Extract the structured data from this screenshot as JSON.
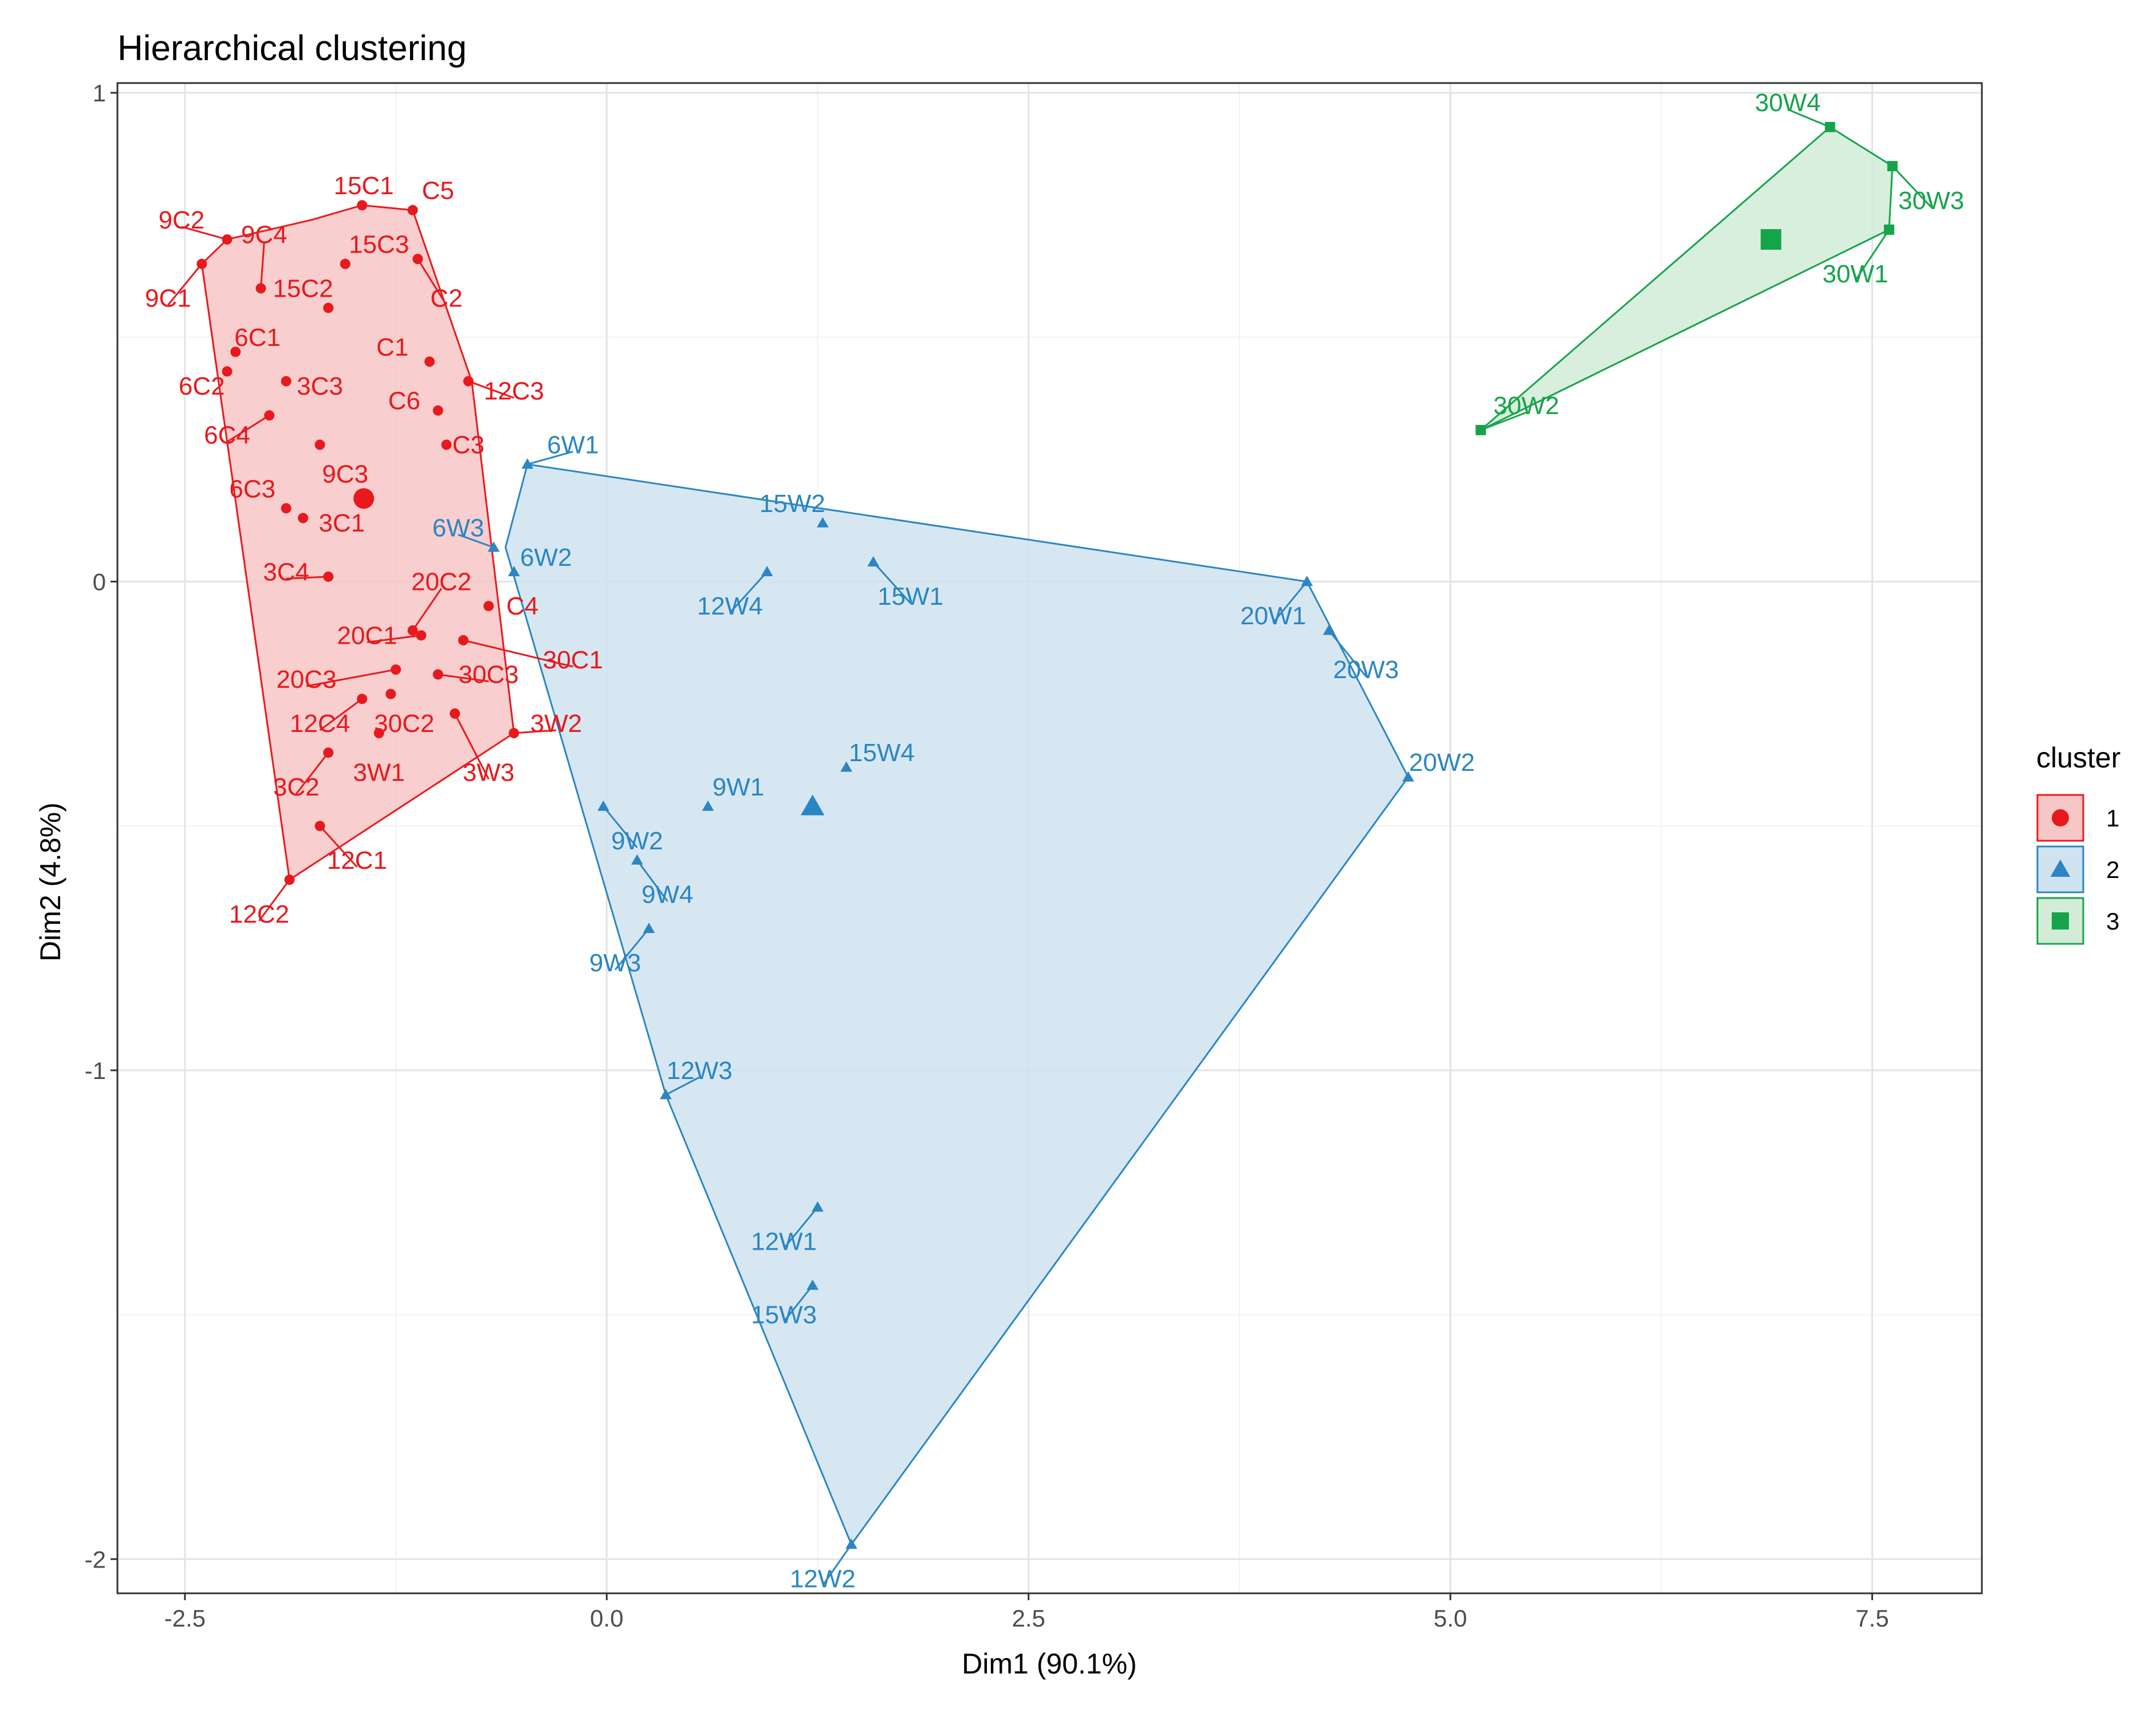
{
  "chart_data": {
    "type": "scatter",
    "title": "Hierarchical clustering",
    "xlabel": "Dim1 (90.1%)",
    "ylabel": "Dim2 (4.8%)",
    "xlim": [
      -2.9,
      8.15
    ],
    "ylim": [
      -2.07,
      1.02
    ],
    "x_ticks": [
      -2.5,
      0.0,
      2.5,
      5.0,
      7.5
    ],
    "x_tick_labels": [
      "-2.5",
      "0.0",
      "2.5",
      "5.0",
      "7.5"
    ],
    "y_ticks": [
      1,
      0,
      -1,
      -2
    ],
    "y_tick_labels": [
      "1",
      "0",
      "-1",
      "-2"
    ],
    "grid": true,
    "legend": {
      "title": "cluster",
      "position": "right"
    },
    "clusters": [
      {
        "name": "1",
        "color": "#e8191c",
        "fill": "#f7c6c7",
        "shape": "circle",
        "centroid": [
          -1.44,
          0.17
        ],
        "hull": [
          [
            -2.4,
            0.65
          ],
          [
            -2.25,
            0.7
          ],
          [
            -1.75,
            0.74
          ],
          [
            -1.45,
            0.77
          ],
          [
            -1.15,
            0.76
          ],
          [
            -0.8,
            0.41
          ],
          [
            -0.55,
            -0.31
          ],
          [
            -1.88,
            -0.61
          ]
        ],
        "points": [
          {
            "label": "9C1",
            "x": -2.4,
            "y": 0.65,
            "lx": -2.6,
            "ly": 0.58
          },
          {
            "label": "9C2",
            "x": -2.25,
            "y": 0.7,
            "lx": -2.52,
            "ly": 0.74
          },
          {
            "label": "9C4",
            "x": -2.05,
            "y": 0.6,
            "lx": -2.03,
            "ly": 0.71
          },
          {
            "label": "15C1",
            "x": -1.45,
            "y": 0.77,
            "lx": -1.44,
            "ly": 0.81
          },
          {
            "label": "C5",
            "x": -1.15,
            "y": 0.76,
            "lx": -1.0,
            "ly": 0.8
          },
          {
            "label": "15C3",
            "x": -1.55,
            "y": 0.65,
            "lx": -1.35,
            "ly": 0.69
          },
          {
            "label": "15C2",
            "x": -1.65,
            "y": 0.56,
            "lx": -1.8,
            "ly": 0.6
          },
          {
            "label": "C2",
            "x": -1.12,
            "y": 0.66,
            "lx": -0.95,
            "ly": 0.58
          },
          {
            "label": "6C1",
            "x": -2.2,
            "y": 0.47,
            "lx": -2.07,
            "ly": 0.5
          },
          {
            "label": "C1",
            "x": -1.05,
            "y": 0.45,
            "lx": -1.27,
            "ly": 0.48
          },
          {
            "label": "12C3",
            "x": -0.82,
            "y": 0.41,
            "lx": -0.55,
            "ly": 0.39
          },
          {
            "label": "6C2",
            "x": -2.25,
            "y": 0.43,
            "lx": -2.4,
            "ly": 0.4
          },
          {
            "label": "3C3",
            "x": -1.9,
            "y": 0.41,
            "lx": -1.7,
            "ly": 0.4
          },
          {
            "label": "C6",
            "x": -1.0,
            "y": 0.35,
            "lx": -1.2,
            "ly": 0.37
          },
          {
            "label": "6C4",
            "x": -2.0,
            "y": 0.34,
            "lx": -2.25,
            "ly": 0.3
          },
          {
            "label": "C3",
            "x": -0.95,
            "y": 0.28,
            "lx": -0.82,
            "ly": 0.28
          },
          {
            "label": "9C3",
            "x": -1.7,
            "y": 0.28,
            "lx": -1.55,
            "ly": 0.22
          },
          {
            "label": "6C3",
            "x": -1.9,
            "y": 0.15,
            "lx": -2.1,
            "ly": 0.19
          },
          {
            "label": "3C1",
            "x": -1.8,
            "y": 0.13,
            "lx": -1.57,
            "ly": 0.12
          },
          {
            "label": "3C4",
            "x": -1.65,
            "y": 0.01,
            "lx": -1.9,
            "ly": 0.02
          },
          {
            "label": "20C2",
            "x": -1.15,
            "y": -0.1,
            "lx": -0.98,
            "ly": 0.0
          },
          {
            "label": "C4",
            "x": -0.7,
            "y": -0.05,
            "lx": -0.5,
            "ly": -0.05
          },
          {
            "label": "20C1",
            "x": -1.1,
            "y": -0.11,
            "lx": -1.42,
            "ly": -0.11
          },
          {
            "label": "30C1",
            "x": -0.85,
            "y": -0.12,
            "lx": -0.2,
            "ly": -0.16
          },
          {
            "label": "20C3",
            "x": -1.25,
            "y": -0.18,
            "lx": -1.78,
            "ly": -0.2
          },
          {
            "label": "30C3",
            "x": -1.0,
            "y": -0.19,
            "lx": -0.7,
            "ly": -0.19
          },
          {
            "label": "12C4",
            "x": -1.45,
            "y": -0.24,
            "lx": -1.7,
            "ly": -0.29
          },
          {
            "label": "30C2",
            "x": -1.28,
            "y": -0.23,
            "lx": -1.2,
            "ly": -0.29
          },
          {
            "label": "3W2",
            "x": -0.55,
            "y": -0.31,
            "lx": -0.3,
            "ly": -0.29
          },
          {
            "label": "3W1",
            "x": -1.35,
            "y": -0.31,
            "lx": -1.35,
            "ly": -0.39
          },
          {
            "label": "3W3",
            "x": -0.9,
            "y": -0.27,
            "lx": -0.7,
            "ly": -0.39
          },
          {
            "label": "3C2",
            "x": -1.65,
            "y": -0.35,
            "lx": -1.84,
            "ly": -0.42
          },
          {
            "label": "12C1",
            "x": -1.7,
            "y": -0.5,
            "lx": -1.48,
            "ly": -0.57
          },
          {
            "label": "12C2",
            "x": -1.88,
            "y": -0.61,
            "lx": -2.06,
            "ly": -0.68
          }
        ]
      },
      {
        "name": "2",
        "color": "#2b86c2",
        "fill": "#cfe3f0",
        "shape": "triangle",
        "centroid": [
          1.22,
          -0.46
        ],
        "hull": [
          [
            -0.6,
            0.07
          ],
          [
            -0.47,
            0.24
          ],
          [
            4.15,
            0.0
          ],
          [
            4.75,
            -0.4
          ],
          [
            1.45,
            -1.97
          ],
          [
            0.35,
            -1.05
          ]
        ],
        "points": [
          {
            "label": "6W1",
            "x": -0.47,
            "y": 0.24,
            "lx": -0.2,
            "ly": 0.28
          },
          {
            "label": "6W3",
            "x": -0.67,
            "y": 0.07,
            "lx": -0.88,
            "ly": 0.11
          },
          {
            "label": "6W2",
            "x": -0.55,
            "y": 0.02,
            "lx": -0.36,
            "ly": 0.05
          },
          {
            "label": "15W2",
            "x": 1.28,
            "y": 0.12,
            "lx": 1.1,
            "ly": 0.16
          },
          {
            "label": "12W4",
            "x": 0.95,
            "y": 0.02,
            "lx": 0.73,
            "ly": -0.05
          },
          {
            "label": "15W1",
            "x": 1.58,
            "y": 0.04,
            "lx": 1.8,
            "ly": -0.03
          },
          {
            "label": "20W1",
            "x": 4.15,
            "y": 0.0,
            "lx": 3.95,
            "ly": -0.07
          },
          {
            "label": "20W3",
            "x": 4.28,
            "y": -0.1,
            "lx": 4.5,
            "ly": -0.18
          },
          {
            "label": "20W2",
            "x": 4.75,
            "y": -0.4,
            "lx": 4.95,
            "ly": -0.37
          },
          {
            "label": "15W4",
            "x": 1.42,
            "y": -0.38,
            "lx": 1.63,
            "ly": -0.35
          },
          {
            "label": "9W1",
            "x": 0.6,
            "y": -0.46,
            "lx": 0.78,
            "ly": -0.42
          },
          {
            "label": "9W2",
            "x": -0.02,
            "y": -0.46,
            "lx": 0.18,
            "ly": -0.53
          },
          {
            "label": "9W4",
            "x": 0.18,
            "y": -0.57,
            "lx": 0.36,
            "ly": -0.64
          },
          {
            "label": "9W3",
            "x": 0.25,
            "y": -0.71,
            "lx": 0.05,
            "ly": -0.78
          },
          {
            "label": "12W3",
            "x": 0.35,
            "y": -1.05,
            "lx": 0.55,
            "ly": -1.0
          },
          {
            "label": "12W1",
            "x": 1.25,
            "y": -1.28,
            "lx": 1.05,
            "ly": -1.35
          },
          {
            "label": "15W3",
            "x": 1.22,
            "y": -1.44,
            "lx": 1.05,
            "ly": -1.5
          },
          {
            "label": "12W2",
            "x": 1.45,
            "y": -1.97,
            "lx": 1.28,
            "ly": -2.04
          }
        ]
      },
      {
        "name": "3",
        "color": "#16a44a",
        "fill": "#d2ecd8",
        "shape": "square",
        "centroid": [
          6.9,
          0.7
        ],
        "hull": [
          [
            5.18,
            0.31
          ],
          [
            7.25,
            0.93
          ],
          [
            7.62,
            0.85
          ],
          [
            7.6,
            0.72
          ]
        ],
        "points": [
          {
            "label": "30W4",
            "x": 7.25,
            "y": 0.93,
            "lx": 7.0,
            "ly": 0.98
          },
          {
            "label": "30W3",
            "x": 7.62,
            "y": 0.85,
            "lx": 7.85,
            "ly": 0.78
          },
          {
            "label": "30W1",
            "x": 7.6,
            "y": 0.72,
            "lx": 7.4,
            "ly": 0.63
          },
          {
            "label": "30W2",
            "x": 5.18,
            "y": 0.31,
            "lx": 5.45,
            "ly": 0.36
          }
        ]
      }
    ]
  }
}
